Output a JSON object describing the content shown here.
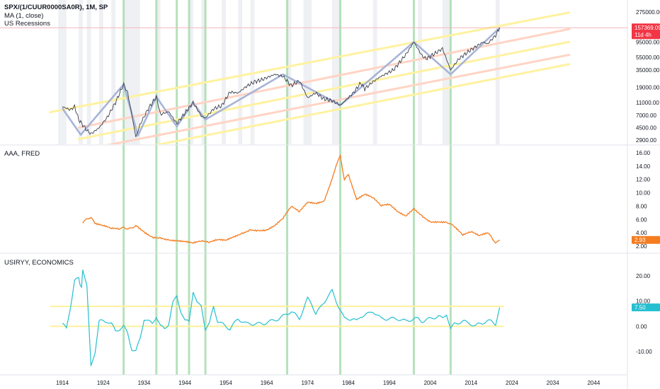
{
  "colors": {
    "price": "#3a3f4b",
    "zigzag": "#a7b4d8",
    "channel_yellow": "#fff2a0",
    "channel_pink": "#ffd4c4",
    "recession_band": "#eef0f3",
    "recession_line": "#9fd8a6",
    "aaa": "#f57c1f",
    "usiryy": "#26bfd0",
    "usiryy_level": "#fff09a",
    "price_badge": "#f23645",
    "pane_border": "#e0e3eb"
  },
  "chart_data": [
    {
      "type": "line",
      "pane": "price",
      "legend": [
        "SPX/(1/CUUR0000SA0R), 1M, SP",
        "MA (1, close)",
        "US Recessions"
      ],
      "scale": "log",
      "y_ticks": [
        {
          "label": "275000.00",
          "value": 275000
        },
        {
          "label": "157369.09",
          "value": 157369.09
        },
        {
          "label": "95000.00",
          "value": 95000
        },
        {
          "label": "55000.00",
          "value": 55000
        },
        {
          "label": "35000.00",
          "value": 35000
        },
        {
          "label": "19000.00",
          "value": 19000
        },
        {
          "label": "11000.00",
          "value": 11000
        },
        {
          "label": "7000.00",
          "value": 7000
        },
        {
          "label": "4500.00",
          "value": 4500
        },
        {
          "label": "2900.00",
          "value": 2900
        }
      ],
      "last_value": "157369.09",
      "last_value_countdown": "11d 4h",
      "series": [
        {
          "role": "price",
          "x": [
            1914,
            1916,
            1917,
            1918,
            1920,
            1921,
            1923,
            1925,
            1927,
            1929,
            1930,
            1932,
            1933,
            1935,
            1937,
            1938,
            1940,
            1942,
            1944,
            1946,
            1948,
            1949,
            1951,
            1953,
            1955,
            1957,
            1959,
            1961,
            1963,
            1966,
            1968,
            1970,
            1972,
            1974,
            1976,
            1978,
            1980,
            1982,
            1985,
            1987,
            1988,
            1990,
            1992,
            1995,
            1998,
            2000,
            2002,
            2003,
            2005,
            2007,
            2009,
            2011,
            2014,
            2017,
            2018,
            2020,
            2021
          ],
          "values": [
            9500,
            8500,
            9600,
            6000,
            4100,
            3600,
            4500,
            6500,
            11000,
            21000,
            15500,
            3200,
            5000,
            8800,
            13500,
            7200,
            8000,
            5200,
            7600,
            11000,
            6800,
            6300,
            8800,
            9800,
            16000,
            15500,
            19500,
            23000,
            25000,
            30000,
            28000,
            20000,
            24000,
            13000,
            15500,
            12500,
            11800,
            10000,
            15000,
            22000,
            18000,
            23000,
            28000,
            35000,
            60000,
            95000,
            58000,
            52000,
            62000,
            75000,
            35000,
            52000,
            72000,
            95000,
            88000,
            120000,
            157369
          ]
        },
        {
          "role": "zigzag",
          "x": [
            1914,
            1918.5,
            1929,
            1932.5,
            1937,
            1942,
            1946,
            1949,
            1968,
            1982,
            2000,
            2009,
            2021
          ],
          "values": [
            9000,
            3500,
            21000,
            3400,
            13500,
            4700,
            11000,
            6000,
            30000,
            10000,
            95000,
            30000,
            157369
          ]
        }
      ],
      "channels": [
        {
          "role": "yellow",
          "points": [
            [
              1911,
              7800
            ],
            [
              2038,
              270000
            ]
          ]
        },
        {
          "role": "pink",
          "points": [
            [
              1918,
              4500
            ],
            [
              2038,
              150000
            ]
          ]
        },
        {
          "role": "yellow",
          "points": [
            [
              1918,
              3000
            ],
            [
              2038,
              95000
            ]
          ]
        },
        {
          "role": "pink",
          "points": [
            [
              1920,
              2100
            ],
            [
              2038,
              60000
            ]
          ]
        },
        {
          "role": "yellow",
          "points": [
            [
              1920,
              1500
            ],
            [
              2038,
              43000
            ]
          ]
        }
      ]
    },
    {
      "type": "line",
      "pane": "aaa",
      "legend": [
        "AAA, FRED"
      ],
      "y_ticks": [
        {
          "label": "16.00",
          "value": 16
        },
        {
          "label": "14.00",
          "value": 14
        },
        {
          "label": "12.00",
          "value": 12
        },
        {
          "label": "10.00",
          "value": 10
        },
        {
          "label": "8.00",
          "value": 8
        },
        {
          "label": "6.00",
          "value": 6
        },
        {
          "label": "4.00",
          "value": 4
        },
        {
          "label": "2.93",
          "value": 2.93
        },
        {
          "label": "2.00",
          "value": 2
        }
      ],
      "last_value": "2.93",
      "series": [
        {
          "role": "aaa",
          "x": [
            1919,
            1920,
            1921,
            1922,
            1924,
            1926,
            1928,
            1929,
            1930,
            1931,
            1932,
            1934,
            1936,
            1938,
            1940,
            1942,
            1944,
            1946,
            1948,
            1950,
            1952,
            1954,
            1956,
            1958,
            1960,
            1962,
            1964,
            1966,
            1968,
            1970,
            1972,
            1974,
            1976,
            1978,
            1980,
            1981,
            1982,
            1983,
            1984,
            1986,
            1988,
            1990,
            1992,
            1994,
            1996,
            1998,
            2000,
            2002,
            2004,
            2006,
            2008,
            2009,
            2010,
            2012,
            2014,
            2016,
            2018,
            2019,
            2020,
            2021
          ],
          "values": [
            5.5,
            6.1,
            6.3,
            5.4,
            5.1,
            4.7,
            4.6,
            4.8,
            4.6,
            4.7,
            5.1,
            4.1,
            3.3,
            3.2,
            2.9,
            2.8,
            2.7,
            2.5,
            2.8,
            2.6,
            3.0,
            2.9,
            3.4,
            3.9,
            4.4,
            4.3,
            4.4,
            5.1,
            6.2,
            8.0,
            7.2,
            8.6,
            8.4,
            8.7,
            12.0,
            14.2,
            15.5,
            12.0,
            12.7,
            9.0,
            9.8,
            9.3,
            8.1,
            8.3,
            7.2,
            6.5,
            7.6,
            6.5,
            5.6,
            5.6,
            5.6,
            5.3,
            4.9,
            3.7,
            4.2,
            3.6,
            4.0,
            3.4,
            2.4,
            2.93
          ]
        }
      ]
    },
    {
      "type": "line",
      "pane": "usiryy",
      "legend": [
        "USIRYY, ECONOMICS"
      ],
      "y_ticks": [
        {
          "label": "20.00",
          "value": 20
        },
        {
          "label": "10.00",
          "value": 10
        },
        {
          "label": "7.50",
          "value": 7.5
        },
        {
          "label": "0.00",
          "value": 0
        },
        {
          "label": "-10.00",
          "value": -10
        }
      ],
      "last_value": "7.50",
      "levels": [
        7.9,
        0
      ],
      "series": [
        {
          "role": "usiryy",
          "x": [
            1914,
            1915,
            1916,
            1917,
            1918,
            1918.7,
            1919,
            1920,
            1921,
            1922,
            1923,
            1925,
            1926,
            1927,
            1928,
            1929,
            1930,
            1931,
            1932,
            1933,
            1934,
            1935,
            1936,
            1937,
            1938,
            1939,
            1940,
            1941,
            1942,
            1943,
            1944,
            1945,
            1946,
            1947,
            1948,
            1949,
            1950,
            1951,
            1952,
            1953,
            1955,
            1957,
            1959,
            1961,
            1963,
            1965,
            1967,
            1969,
            1970,
            1972,
            1973,
            1974,
            1975,
            1976,
            1977,
            1979,
            1980,
            1981,
            1983,
            1985,
            1986,
            1987,
            1989,
            1990,
            1992,
            1994,
            1996,
            1998,
            2000,
            2001,
            2002,
            2004,
            2006,
            2007,
            2008,
            2009,
            2010,
            2012,
            2014,
            2015,
            2016,
            2018,
            2019,
            2020,
            2021
          ],
          "values": [
            1,
            -1,
            8,
            18,
            19,
            15,
            23,
            16,
            -16,
            -10,
            2,
            2,
            1,
            -2,
            -1,
            0,
            -3,
            -9,
            -10,
            -5,
            3,
            2,
            1,
            4,
            0,
            -1,
            1,
            9,
            12,
            6,
            2,
            2,
            14,
            9,
            8,
            -1,
            1,
            8,
            2,
            1,
            -1,
            3,
            1,
            1,
            1,
            2,
            3,
            5,
            6,
            3,
            7,
            11,
            9,
            5,
            7,
            12,
            14,
            10,
            3,
            3,
            2,
            4,
            5,
            6,
            3,
            3,
            3,
            2,
            3,
            3,
            2,
            3,
            4,
            3,
            5,
            -1,
            1,
            2,
            1,
            0,
            1,
            2,
            2,
            1,
            7.5
          ]
        }
      ]
    },
    {
      "type": "axis",
      "pane": "time",
      "x_ticks": [
        {
          "label": "1914",
          "value": 1914
        },
        {
          "label": "1924",
          "value": 1924
        },
        {
          "label": "1934",
          "value": 1934
        },
        {
          "label": "1944",
          "value": 1944
        },
        {
          "label": "1954",
          "value": 1954
        },
        {
          "label": "1964",
          "value": 1964
        },
        {
          "label": "1974",
          "value": 1974
        },
        {
          "label": "1984",
          "value": 1984
        },
        {
          "label": "1994",
          "value": 1994
        },
        {
          "label": "2004",
          "value": 2004
        },
        {
          "label": "2014",
          "value": 2014
        },
        {
          "label": "2024",
          "value": 2024
        },
        {
          "label": "2034",
          "value": 2034
        },
        {
          "label": "2044",
          "value": 2044
        }
      ],
      "x_range": [
        1901,
        2050
      ],
      "recession_bands": [
        [
          1913,
          1915
        ],
        [
          1918,
          1919
        ],
        [
          1920,
          1921
        ],
        [
          1923,
          1924
        ],
        [
          1926,
          1927
        ],
        [
          1929,
          1933
        ],
        [
          1937,
          1938
        ],
        [
          1945,
          1946
        ],
        [
          1948,
          1949
        ],
        [
          1953,
          1954
        ],
        [
          1957,
          1958
        ],
        [
          1960,
          1961
        ],
        [
          1969,
          1970
        ],
        [
          1973,
          1975
        ],
        [
          1980,
          1981
        ],
        [
          1981,
          1982
        ],
        [
          1990,
          1991
        ],
        [
          2001,
          2002
        ],
        [
          2007,
          2009
        ],
        [
          2020,
          2021
        ]
      ],
      "recession_lines": [
        1929,
        1937,
        1942,
        1945,
        1949,
        1969,
        1982,
        2000,
        2009
      ]
    }
  ]
}
